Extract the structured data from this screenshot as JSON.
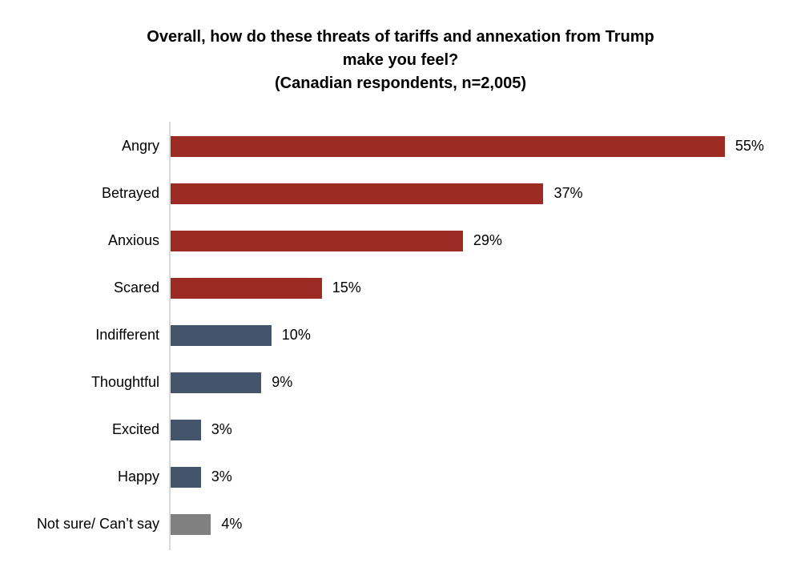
{
  "chart_data": {
    "type": "bar",
    "orientation": "horizontal",
    "title": "Overall, how do these threats of tariffs and annexation from Trump make you feel? (Canadian respondents, n=2,005)",
    "title_lines": [
      "Overall, how do these threats of tariffs and annexation from Trump",
      "make you feel?",
      "(Canadian respondents, n=2,005)"
    ],
    "xlabel": "",
    "ylabel": "",
    "xlim": [
      0,
      60
    ],
    "grid": false,
    "legend": false,
    "axis_line_color": "#d9d9d9",
    "colors": {
      "negative_emotion": "#9c2b23",
      "neutral_positive_emotion": "#44546a",
      "not_sure": "#808080"
    },
    "categories": [
      "Angry",
      "Betrayed",
      "Anxious",
      "Scared",
      "Indifferent",
      "Thoughtful",
      "Excited",
      "Happy",
      "Not sure/ Can’t say"
    ],
    "values": [
      55,
      37,
      29,
      15,
      10,
      9,
      3,
      3,
      4
    ],
    "items": [
      {
        "label": "Angry",
        "value": 55,
        "display": "55%",
        "color": "#9c2b23"
      },
      {
        "label": "Betrayed",
        "value": 37,
        "display": "37%",
        "color": "#9c2b23"
      },
      {
        "label": "Anxious",
        "value": 29,
        "display": "29%",
        "color": "#9c2b23"
      },
      {
        "label": "Scared",
        "value": 15,
        "display": "15%",
        "color": "#9c2b23"
      },
      {
        "label": "Indifferent",
        "value": 10,
        "display": "10%",
        "color": "#44546a"
      },
      {
        "label": "Thoughtful",
        "value": 9,
        "display": "9%",
        "color": "#44546a"
      },
      {
        "label": "Excited",
        "value": 3,
        "display": "3%",
        "color": "#44546a"
      },
      {
        "label": "Happy",
        "value": 3,
        "display": "3%",
        "color": "#44546a"
      },
      {
        "label": "Not sure/ Can’t say",
        "value": 4,
        "display": "4%",
        "color": "#808080"
      }
    ]
  }
}
